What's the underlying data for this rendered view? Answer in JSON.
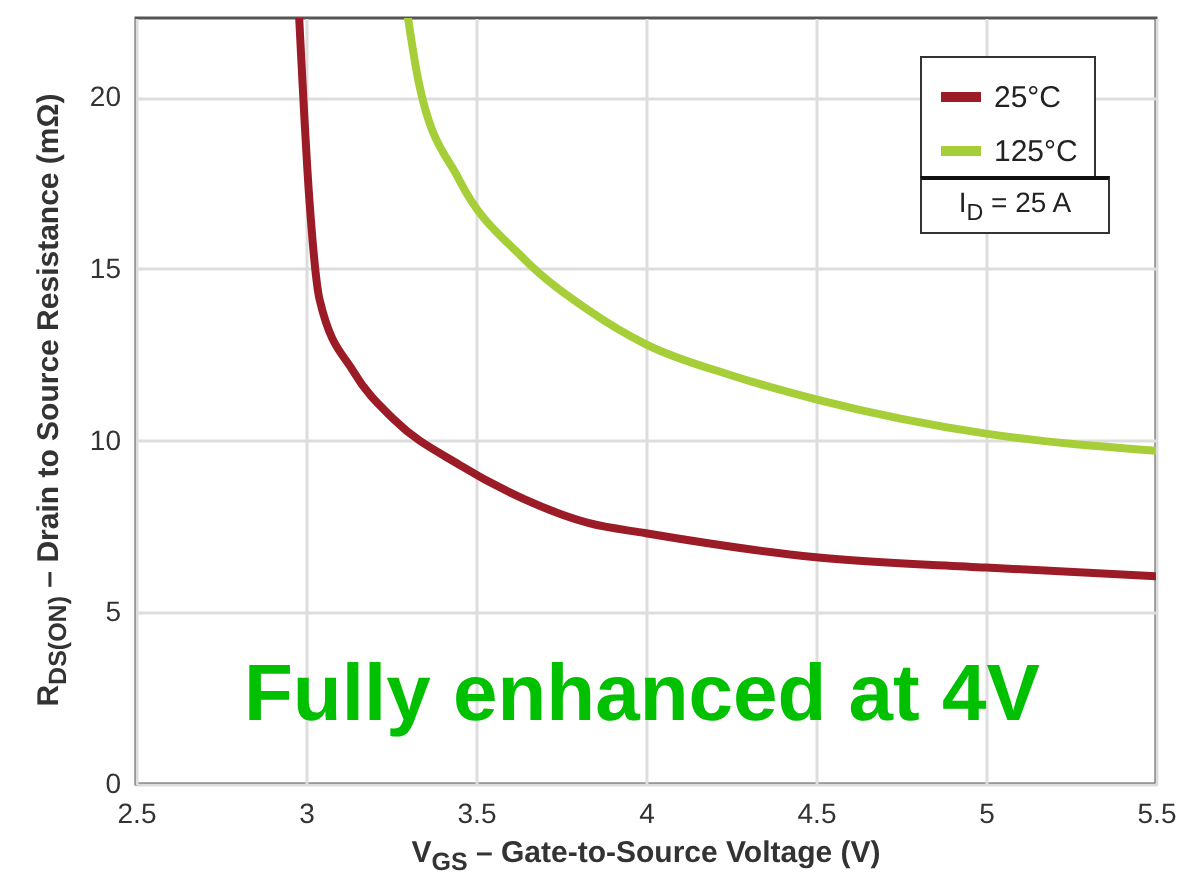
{
  "chart_data": {
    "type": "line",
    "xlabel": "V$_{GS}$ – Gate-to-Source Voltage (V)",
    "ylabel": "R$_{DS(ON)}$ – Drain to Source Resistance (mΩ)",
    "xlim": [
      2.5,
      5.5
    ],
    "ylim": [
      0,
      22.3
    ],
    "xticks": [
      2.5,
      3,
      3.5,
      4,
      4.5,
      5,
      5.5
    ],
    "yticks": [
      0,
      5,
      10,
      15,
      20
    ],
    "grid": true,
    "legend": "top right",
    "line_style": "solid",
    "marker": "none",
    "annotations": [
      "I$_{D}$ = 25 A",
      "Fully enhanced at 4V"
    ],
    "series": [
      {
        "name": "25°C",
        "color": "#9b1c26",
        "x": [
          2.98,
          3.01,
          3.04,
          3.14,
          3.26,
          3.45,
          3.64,
          3.83,
          4.0,
          4.5,
          5.0,
          5.5
        ],
        "values": [
          22.3,
          17.0,
          14.1,
          12.0,
          10.6,
          9.3,
          8.3,
          7.6,
          7.3,
          6.6,
          6.3,
          6.05
        ]
      },
      {
        "name": "125°C",
        "color": "#a6ce39",
        "x": [
          3.3,
          3.33,
          3.45,
          3.64,
          3.83,
          4.0,
          4.25,
          4.5,
          5.0,
          5.5
        ],
        "values": [
          22.3,
          20.5,
          17.6,
          15.3,
          13.8,
          12.8,
          11.9,
          11.2,
          10.2,
          9.7
        ]
      }
    ]
  }
}
